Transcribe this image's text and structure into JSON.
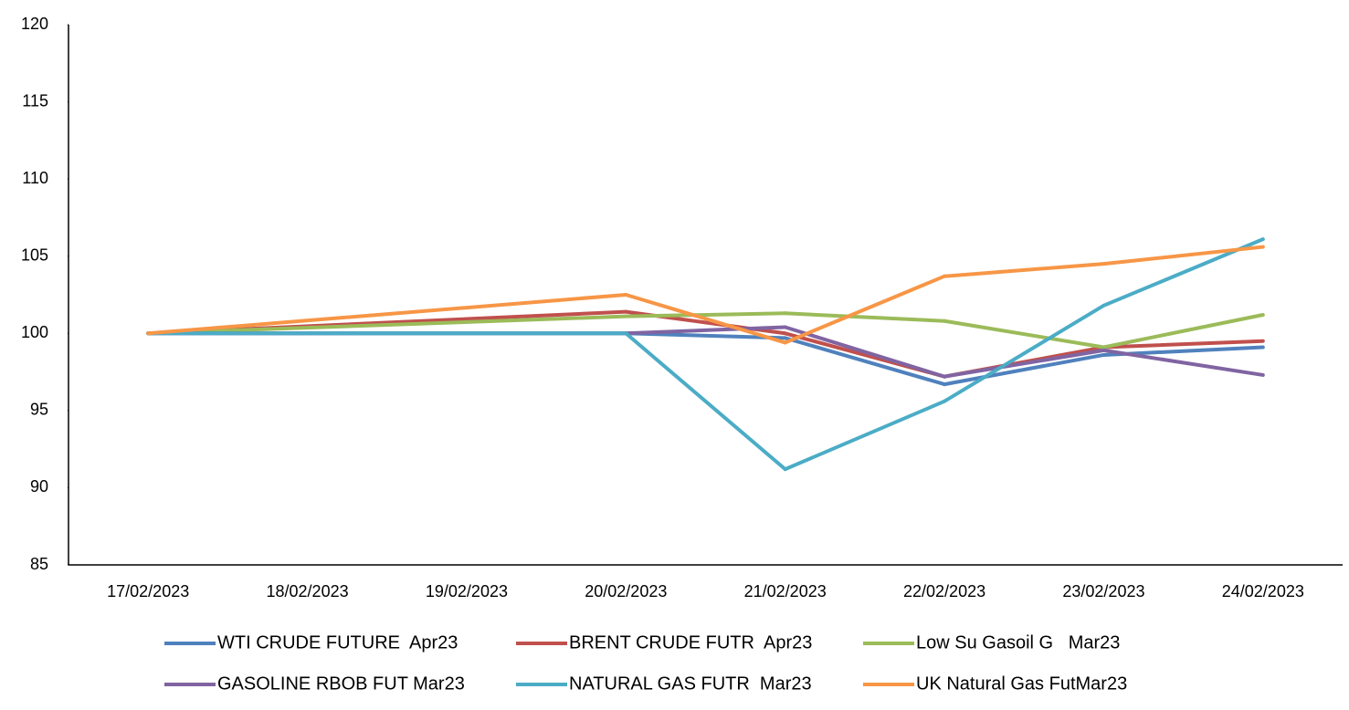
{
  "chart_data": {
    "type": "line",
    "categories": [
      "17/02/2023",
      "18/02/2023",
      "19/02/2023",
      "20/02/2023",
      "21/02/2023",
      "22/02/2023",
      "23/02/2023",
      "24/02/2023"
    ],
    "series": [
      {
        "name": "WTI CRUDE FUTURE  Apr23",
        "color": "#4f81bd",
        "values": [
          100,
          null,
          null,
          100,
          99.7,
          96.7,
          98.6,
          99.1
        ]
      },
      {
        "name": "BRENT CRUDE FUTR  Apr23",
        "color": "#c0504d",
        "values": [
          100,
          null,
          null,
          101.4,
          100.0,
          97.2,
          99.1,
          99.5
        ]
      },
      {
        "name": "Low Su Gasoil G   Mar23",
        "color": "#9bbb59",
        "values": [
          100,
          null,
          null,
          101.1,
          101.3,
          100.8,
          99.1,
          101.2
        ]
      },
      {
        "name": "GASOLINE RBOB FUT Mar23",
        "color": "#8064a2",
        "values": [
          100,
          null,
          null,
          100,
          100.4,
          97.2,
          98.9,
          97.3
        ]
      },
      {
        "name": "NATURAL GAS FUTR  Mar23",
        "color": "#4bacc6",
        "values": [
          100,
          null,
          null,
          100,
          91.2,
          95.6,
          101.8,
          106.1
        ]
      },
      {
        "name": "UK Natural Gas FutMar23",
        "color": "#f79646",
        "values": [
          100,
          null,
          null,
          102.5,
          99.4,
          103.7,
          104.5,
          105.6
        ]
      }
    ],
    "connect_gaps": true,
    "ylim": [
      85,
      120
    ],
    "yticks": [
      85,
      90,
      95,
      100,
      105,
      110,
      115,
      120
    ],
    "grid": false,
    "legend": "bottom"
  }
}
